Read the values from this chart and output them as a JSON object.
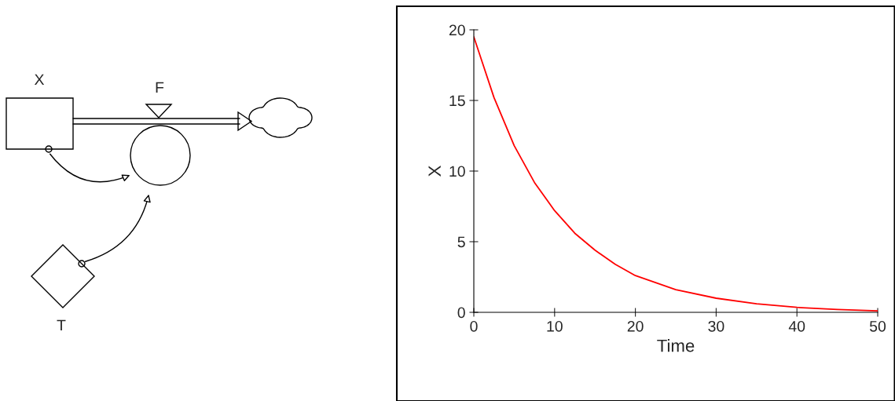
{
  "chart_data": [
    {
      "type": "other",
      "annotations": [
        "X",
        "F",
        "T"
      ]
    },
    {
      "type": "line",
      "xlabel": "Time",
      "ylabel": "X",
      "xlim": [
        0,
        50
      ],
      "ylim": [
        0,
        20
      ],
      "xticks": [
        0,
        10,
        20,
        30,
        40,
        50
      ],
      "yticks": [
        0,
        5,
        10,
        15,
        20
      ],
      "grid": false,
      "legend": false,
      "x": [
        0,
        2.5,
        5,
        7.5,
        10,
        12.5,
        15,
        17.5,
        20,
        25,
        30,
        35,
        40,
        45,
        50
      ],
      "series": [
        {
          "color": "#ff0000",
          "values": [
            19.5,
            15.2,
            11.8,
            9.2,
            7.2,
            5.6,
            4.4,
            3.4,
            2.6,
            1.6,
            1.0,
            0.6,
            0.35,
            0.2,
            0.1
          ]
        }
      ]
    }
  ]
}
